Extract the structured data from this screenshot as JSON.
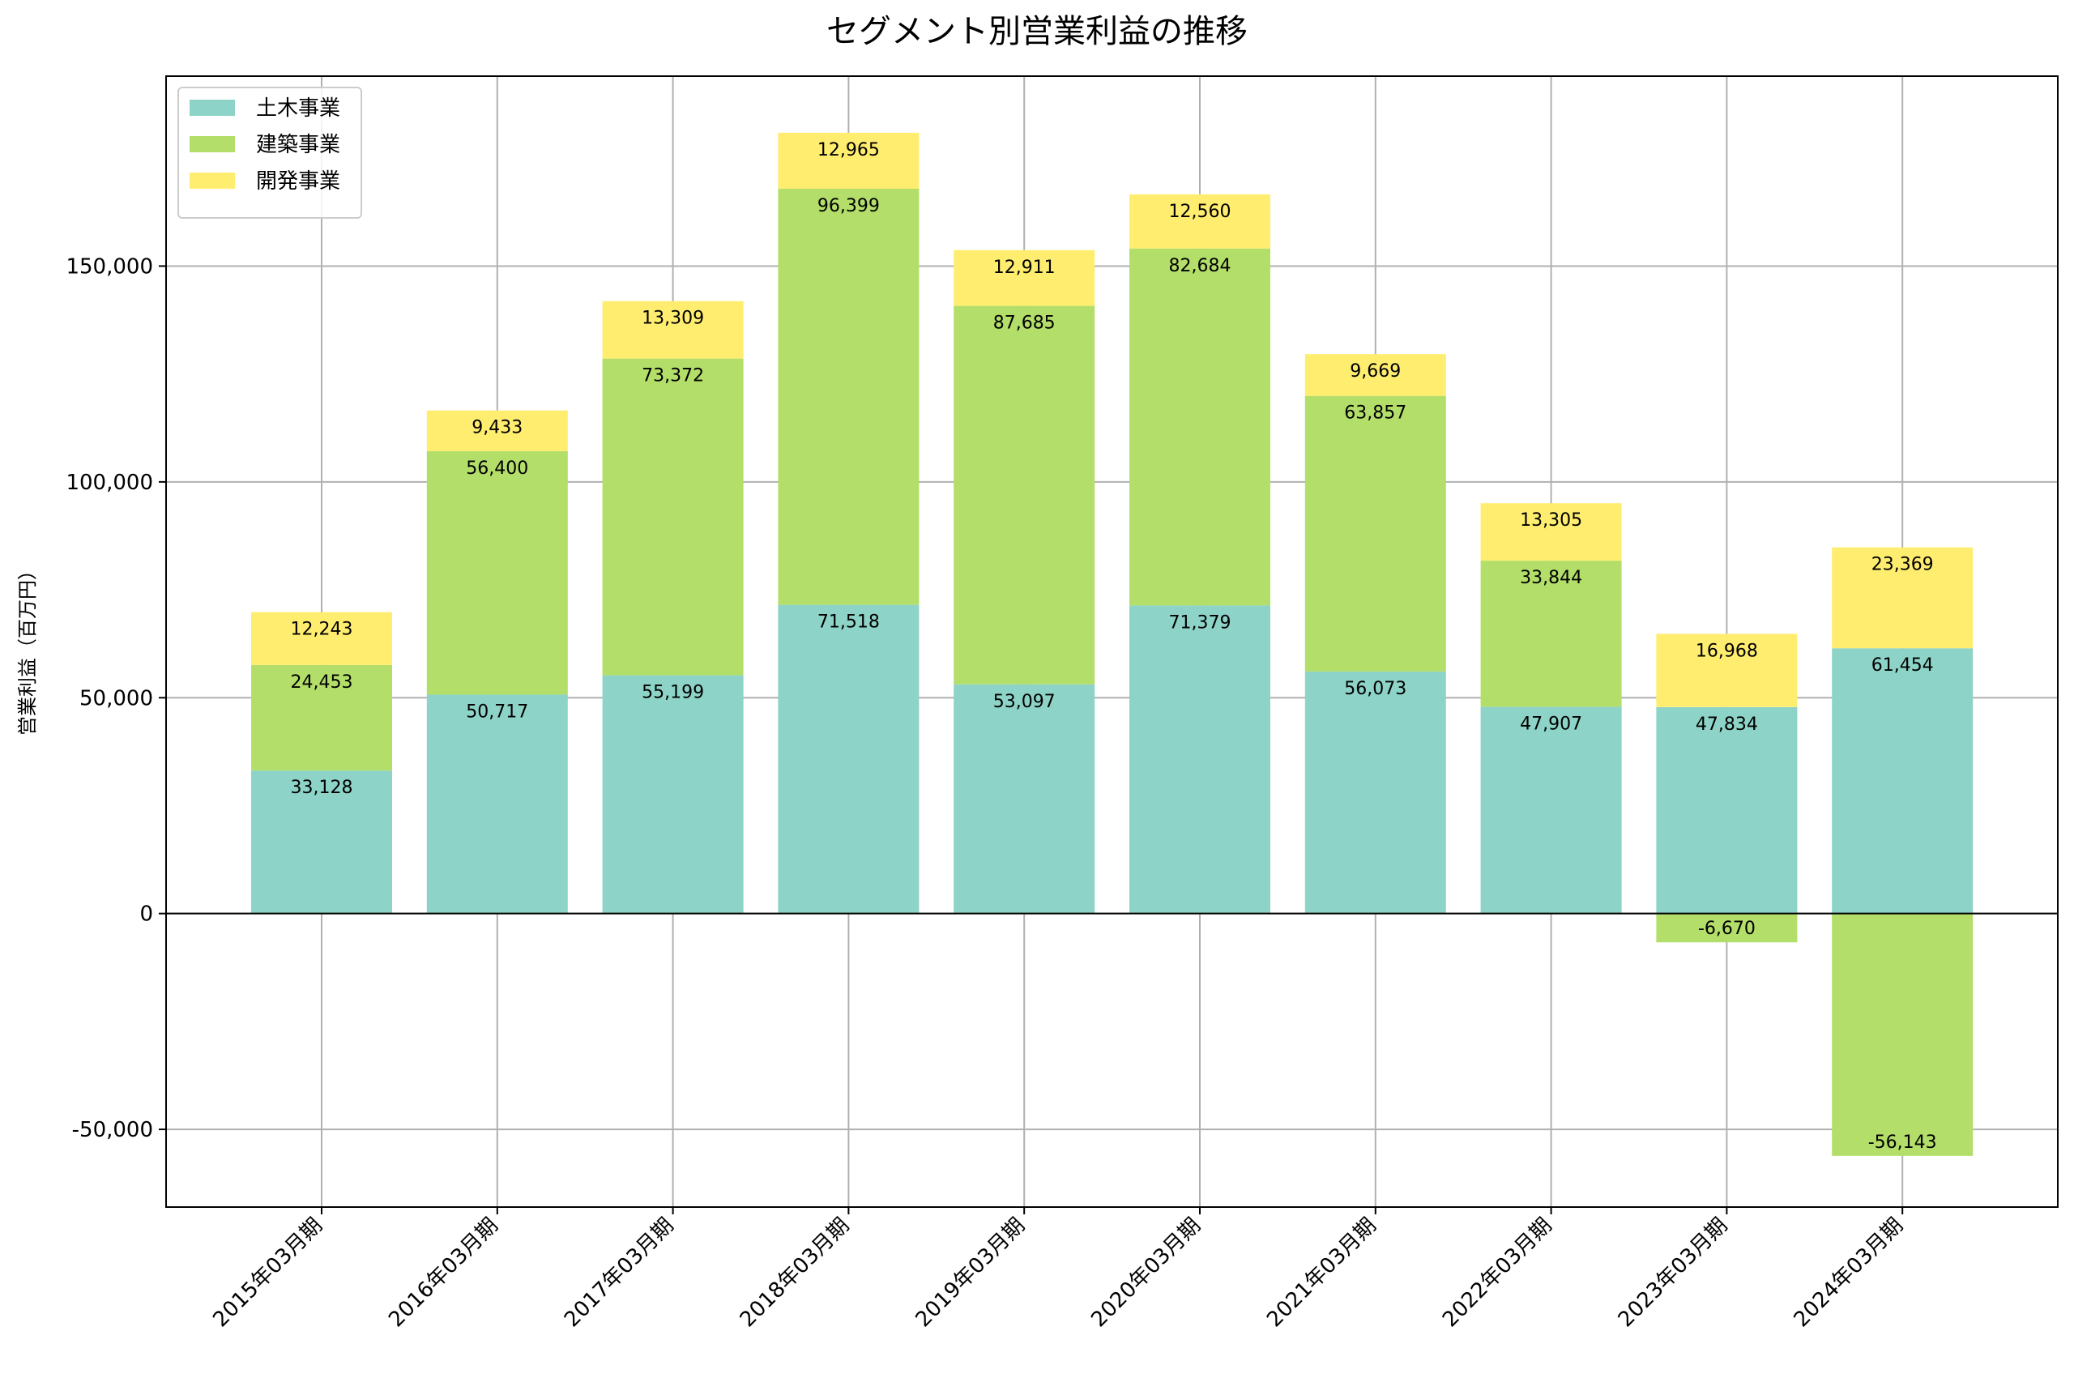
{
  "chart_data": {
    "type": "bar",
    "stacked": true,
    "title": "セグメント別営業利益の推移",
    "xlabel": "",
    "ylabel": "営業利益（百万円）",
    "ylim": [
      -68000,
      194000
    ],
    "yticks": [
      -50000,
      0,
      50000,
      100000,
      150000
    ],
    "ytick_labels": [
      "-50,000",
      "0",
      "50,000",
      "100,000",
      "150,000"
    ],
    "grid": true,
    "legend_position": "top-left",
    "categories": [
      "2015年03月期",
      "2016年03月期",
      "2017年03月期",
      "2018年03月期",
      "2019年03月期",
      "2020年03月期",
      "2021年03月期",
      "2022年03月期",
      "2023年03月期",
      "2024年03月期"
    ],
    "series": [
      {
        "name": "土木事業",
        "color": "#8dd3c7",
        "values": [
          33128,
          50717,
          55199,
          71518,
          53097,
          71379,
          56073,
          47907,
          47834,
          61454
        ],
        "labels": [
          "33,128",
          "50,717",
          "55,199",
          "71,518",
          "53,097",
          "71,379",
          "56,073",
          "47,907",
          "47,834",
          "61,454"
        ]
      },
      {
        "name": "建築事業",
        "color": "#b3de69",
        "values": [
          24453,
          56400,
          73372,
          96399,
          87685,
          82684,
          63857,
          33844,
          -6670,
          -56143
        ],
        "labels": [
          "24,453",
          "56,400",
          "73,372",
          "96,399",
          "87,685",
          "82,684",
          "63,857",
          "33,844",
          "-6,670",
          "-56,143"
        ]
      },
      {
        "name": "開発事業",
        "color": "#ffed6f",
        "values": [
          12243,
          9433,
          13309,
          12965,
          12911,
          12560,
          9669,
          13305,
          16968,
          23369
        ],
        "labels": [
          "12,243",
          "9,433",
          "13,309",
          "12,965",
          "12,911",
          "12,560",
          "9,669",
          "13,305",
          "16,968",
          "23,369"
        ]
      }
    ]
  }
}
